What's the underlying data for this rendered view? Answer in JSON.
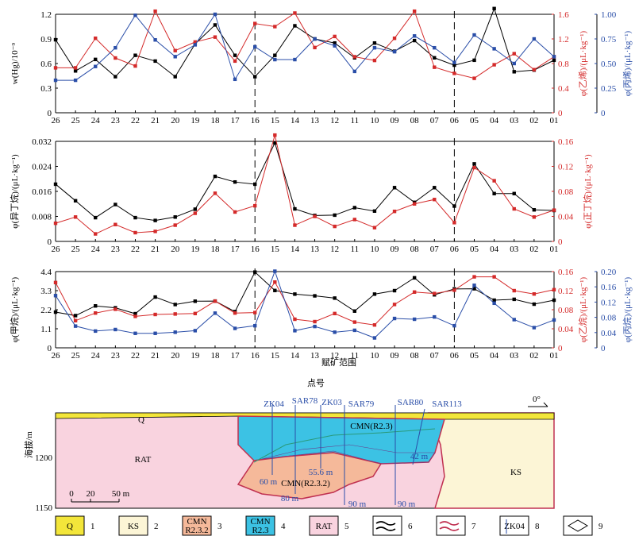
{
  "points": [
    "26",
    "25",
    "24",
    "23",
    "22",
    "21",
    "20",
    "19",
    "18",
    "17",
    "16",
    "15",
    "14",
    "13",
    "12",
    "11",
    "10",
    "09",
    "08",
    "07",
    "06",
    "05",
    "04",
    "03",
    "02",
    "01"
  ],
  "colors": {
    "black": "#000000",
    "red": "#d42a2a",
    "blue": "#2a4ea8"
  },
  "chart_data": [
    {
      "type": "line",
      "left_axis": {
        "label": "w(Hg)/10⁻⁹",
        "ylim": [
          0,
          1.2
        ],
        "ticks": [
          "0",
          "0.3",
          "0.6",
          "0.9",
          "1.2"
        ]
      },
      "right_axis_1": {
        "label": "φ(乙烯)/(μL·kg⁻¹)",
        "ylim": [
          0,
          1.6
        ],
        "ticks": [
          "0",
          "0.4",
          "0.8",
          "1.2",
          "1.6"
        ]
      },
      "right_axis_2": {
        "label": "φ(丙烯)/(μL·kg⁻¹)",
        "ylim": [
          0,
          1.0
        ],
        "ticks": [
          "0",
          "0.25",
          "0.50",
          "0.75",
          "1.00"
        ]
      },
      "series": [
        {
          "axis": "left",
          "color": "black",
          "values": [
            0.89,
            0.51,
            0.65,
            0.44,
            0.7,
            0.63,
            0.44,
            0.84,
            1.07,
            0.7,
            0.44,
            0.7,
            1.06,
            0.9,
            0.85,
            0.67,
            0.85,
            0.75,
            0.88,
            0.67,
            0.58,
            0.64,
            1.27,
            0.5,
            0.52,
            0.64
          ]
        },
        {
          "axis": "right1",
          "color": "red",
          "values": [
            0.73,
            0.73,
            1.21,
            0.89,
            0.76,
            1.65,
            1.01,
            1.15,
            1.23,
            0.84,
            1.45,
            1.4,
            1.62,
            1.06,
            1.24,
            0.91,
            0.85,
            1.21,
            1.65,
            0.74,
            0.64,
            0.56,
            0.78,
            0.96,
            0.7,
            0.91
          ]
        },
        {
          "axis": "right2",
          "color": "blue",
          "values": [
            0.33,
            0.33,
            0.47,
            0.66,
            0.99,
            0.74,
            0.57,
            0.69,
            1.0,
            0.34,
            0.67,
            0.54,
            0.54,
            0.75,
            0.68,
            0.42,
            0.66,
            0.62,
            0.78,
            0.66,
            0.51,
            0.79,
            0.65,
            0.5,
            0.75,
            0.57
          ]
        }
      ],
      "boundaries": [
        "16",
        "06"
      ]
    },
    {
      "type": "line",
      "left_axis": {
        "label": "φ(异丁烷)/(μL·kg⁻¹)",
        "ylim": [
          0,
          0.032
        ],
        "ticks": [
          "0",
          "0.008",
          "0.016",
          "0.024",
          "0.032"
        ]
      },
      "right_axis": {
        "label": "φ(正丁烷)/(μL·kg⁻¹)",
        "ylim": [
          0,
          0.16
        ],
        "ticks": [
          "0",
          "0.04",
          "0.08",
          "0.12",
          "0.16"
        ]
      },
      "series": [
        {
          "axis": "left",
          "color": "black",
          "values": [
            0.0183,
            0.013,
            0.0076,
            0.0118,
            0.0076,
            0.0067,
            0.0078,
            0.0103,
            0.0208,
            0.019,
            0.0183,
            0.0315,
            0.0104,
            0.0083,
            0.0084,
            0.0108,
            0.0097,
            0.0172,
            0.0125,
            0.0172,
            0.0113,
            0.0248,
            0.0153,
            0.0153,
            0.0101,
            0.0099
          ]
        },
        {
          "axis": "right",
          "color": "red",
          "values": [
            0.029,
            0.039,
            0.012,
            0.027,
            0.014,
            0.016,
            0.026,
            0.045,
            0.077,
            0.047,
            0.057,
            0.17,
            0.026,
            0.04,
            0.024,
            0.035,
            0.022,
            0.048,
            0.06,
            0.067,
            0.03,
            0.118,
            0.097,
            0.052,
            0.039,
            0.05
          ]
        }
      ],
      "boundaries": [
        "16",
        "06"
      ]
    },
    {
      "type": "line",
      "left_axis": {
        "label": "φ(甲烷)/(μL·kg⁻¹)",
        "ylim": [
          0,
          4.4
        ],
        "ticks": [
          "0",
          "1.1",
          "2.2",
          "3.3",
          "4.4"
        ]
      },
      "right_axis_1": {
        "label": "φ(乙烷)/(μL·kg⁻¹)",
        "ylim": [
          0,
          0.16
        ],
        "ticks": [
          "0",
          "0.04",
          "0.08",
          "0.12",
          "0.16"
        ]
      },
      "right_axis_2": {
        "label": "φ(丙烷)/(μL·kg⁻¹)",
        "ylim": [
          0,
          0.2
        ],
        "ticks": [
          "0",
          "0.04",
          "0.08",
          "0.12",
          "0.16",
          "0.20"
        ]
      },
      "x_axis": {
        "label": "点号"
      },
      "annotation": "赋矿范围",
      "series": [
        {
          "axis": "left",
          "color": "black",
          "values": [
            2.06,
            1.86,
            2.42,
            2.31,
            1.97,
            2.93,
            2.5,
            2.69,
            2.7,
            2.09,
            4.37,
            3.31,
            3.1,
            3.0,
            2.87,
            2.12,
            3.1,
            3.3,
            4.04,
            3.06,
            3.4,
            3.41,
            2.75,
            2.8,
            2.52,
            2.75
          ]
        },
        {
          "axis": "right1",
          "color": "red",
          "values": [
            0.137,
            0.057,
            0.073,
            0.081,
            0.066,
            0.07,
            0.071,
            0.072,
            0.098,
            0.073,
            0.074,
            0.138,
            0.06,
            0.055,
            0.072,
            0.054,
            0.048,
            0.091,
            0.117,
            0.114,
            0.121,
            0.149,
            0.149,
            0.12,
            0.113,
            0.122
          ]
        },
        {
          "axis": "right2",
          "color": "blue",
          "values": [
            0.137,
            0.057,
            0.044,
            0.048,
            0.038,
            0.038,
            0.041,
            0.045,
            0.091,
            0.051,
            0.058,
            0.201,
            0.045,
            0.056,
            0.041,
            0.046,
            0.026,
            0.077,
            0.075,
            0.081,
            0.058,
            0.164,
            0.117,
            0.074,
            0.053,
            0.073
          ]
        }
      ],
      "boundaries": [
        "16",
        "06"
      ]
    }
  ],
  "section": {
    "units": [
      "Q",
      "RAT",
      "KS",
      "CMN(R2.3)",
      "CMN(R2.3.2)"
    ],
    "boreholes": [
      "ZK04",
      "SAR78",
      "ZK03",
      "SAR79",
      "SAR80",
      "SAR113"
    ],
    "depths": [
      "60 m",
      "55.6 m",
      "80 m",
      "90 m",
      "90 m",
      "42 m"
    ],
    "elevation_label": "海拔/m",
    "elevation_ticks": [
      "1200",
      "1150"
    ],
    "scale": [
      "0",
      "20",
      "50 m"
    ],
    "north": "0°"
  },
  "legend": [
    {
      "num": "1",
      "swatch": "Q",
      "fill": "#f3e63a"
    },
    {
      "num": "2",
      "swatch": "KS",
      "fill": "#fcf5d6"
    },
    {
      "num": "3",
      "swatch": "CMN\nR2.3.2",
      "fill": "#f5b99a"
    },
    {
      "num": "4",
      "swatch": "CMN\nR2.3",
      "fill": "#3cc2e4"
    },
    {
      "num": "5",
      "swatch": "RAT",
      "fill": "#f9d3df"
    },
    {
      "num": "6",
      "swatch": ""
    },
    {
      "num": "7",
      "swatch": ""
    },
    {
      "num": "8",
      "swatch": "ZK04"
    },
    {
      "num": "9",
      "swatch": ""
    }
  ]
}
